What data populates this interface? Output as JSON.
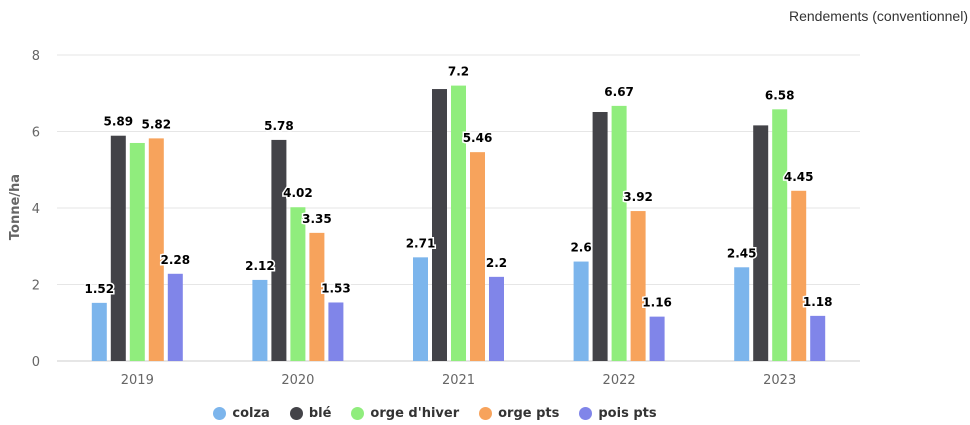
{
  "chart_data": {
    "type": "bar",
    "title": "Rendements (conventionnel)",
    "ylabel": "Tonne/ha",
    "xlabel": "",
    "ylim": [
      0,
      8
    ],
    "yticks": [
      0,
      2,
      4,
      6,
      8
    ],
    "grid": true,
    "legend_position": "bottom",
    "categories": [
      "2019",
      "2020",
      "2021",
      "2022",
      "2023"
    ],
    "series": [
      {
        "name": "colza",
        "color": "#7cb5ec",
        "values": [
          1.52,
          2.12,
          2.71,
          2.6,
          2.45
        ],
        "labels": [
          "1.52",
          "2.12",
          "2.71",
          "2.6",
          "2.45"
        ]
      },
      {
        "name": "blé",
        "color": "#434348",
        "values": [
          5.89,
          5.78,
          7.11,
          6.51,
          6.16
        ],
        "labels": [
          "5.89",
          "5.78",
          "",
          "",
          ""
        ]
      },
      {
        "name": "orge d'hiver",
        "color": "#90ed7d",
        "values": [
          5.7,
          4.02,
          7.2,
          6.67,
          6.58
        ],
        "labels": [
          "",
          "4.02",
          "7.2",
          "6.67",
          "6.58"
        ]
      },
      {
        "name": "orge pts",
        "color": "#f7a35c",
        "values": [
          5.82,
          3.35,
          5.46,
          3.92,
          4.45
        ],
        "labels": [
          "5.82",
          "3.35",
          "5.46",
          "3.92",
          "4.45"
        ]
      },
      {
        "name": "pois pts",
        "color": "#8085e9",
        "values": [
          2.28,
          1.53,
          2.2,
          1.16,
          1.18
        ],
        "labels": [
          "2.28",
          "1.53",
          "2.2",
          "1.16",
          "1.18"
        ]
      }
    ]
  }
}
